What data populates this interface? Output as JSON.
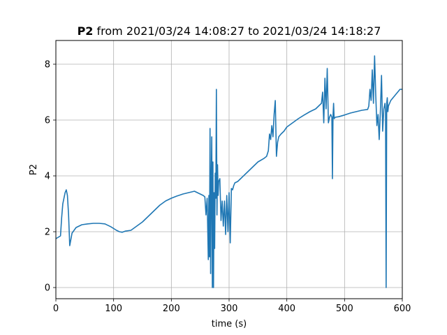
{
  "chart_data": {
    "type": "line",
    "title_bold": "P2",
    "title_rest": " from 2021/03/24 14:08:27 to 2021/03/24 14:18:27",
    "xlabel": "time (s)",
    "ylabel": "P2",
    "xlim": [
      0,
      600
    ],
    "ylim": [
      -0.4,
      8.85
    ],
    "xticks": [
      0,
      100,
      200,
      300,
      400,
      500,
      600
    ],
    "yticks": [
      0,
      2,
      4,
      6,
      8
    ],
    "grid": true,
    "line_color": "#1f77b4",
    "series": [
      {
        "x": [
          0,
          4,
          8,
          10,
          12,
          14,
          16,
          18,
          20,
          22,
          24,
          28,
          35,
          45,
          55,
          65,
          75,
          85,
          95,
          105,
          110,
          115,
          120,
          130,
          140,
          150,
          160,
          170,
          180,
          190,
          200,
          210,
          220,
          230,
          240,
          250,
          255,
          258,
          260,
          262,
          264,
          265,
          266,
          267,
          268,
          269,
          270,
          271,
          272,
          273,
          274,
          275,
          276,
          277,
          278,
          279,
          280,
          281,
          282,
          284,
          286,
          288,
          290,
          292,
          294,
          296,
          298,
          300,
          302,
          304,
          306,
          308,
          310,
          315,
          320,
          330,
          340,
          350,
          360,
          365,
          368,
          370,
          372,
          374,
          376,
          378,
          380,
          382,
          384,
          386,
          390,
          395,
          400,
          410,
          420,
          430,
          440,
          450,
          455,
          460,
          462,
          464,
          466,
          468,
          470,
          472,
          474,
          476,
          478,
          479,
          480,
          481,
          482,
          484,
          490,
          500,
          510,
          520,
          530,
          540,
          542,
          544,
          546,
          548,
          550,
          552,
          554,
          556,
          558,
          560,
          562,
          564,
          566,
          568,
          570,
          571,
          572,
          573,
          574,
          575,
          576,
          578,
          580,
          584,
          588,
          592,
          596,
          600
        ],
        "y": [
          1.75,
          1.8,
          1.85,
          2.5,
          3.0,
          3.2,
          3.4,
          3.5,
          3.3,
          2.6,
          1.5,
          1.95,
          2.15,
          2.25,
          2.28,
          2.3,
          2.3,
          2.28,
          2.18,
          2.05,
          2.0,
          1.98,
          2.02,
          2.05,
          2.2,
          2.35,
          2.55,
          2.75,
          2.95,
          3.1,
          3.2,
          3.28,
          3.35,
          3.4,
          3.45,
          3.35,
          3.3,
          3.25,
          2.6,
          3.2,
          1.0,
          3.3,
          1.1,
          5.7,
          0.5,
          3.8,
          5.4,
          0.0,
          4.5,
          0.0,
          3.4,
          1.4,
          4.1,
          3.2,
          7.1,
          2.6,
          4.4,
          3.3,
          3.8,
          3.9,
          2.4,
          3.1,
          2.2,
          3.1,
          1.9,
          3.3,
          2.0,
          3.4,
          1.6,
          3.55,
          3.5,
          3.65,
          3.75,
          3.8,
          3.9,
          4.1,
          4.3,
          4.5,
          4.62,
          4.7,
          4.9,
          5.5,
          5.3,
          5.8,
          5.4,
          6.2,
          6.7,
          4.7,
          5.2,
          5.4,
          5.5,
          5.6,
          5.75,
          5.9,
          6.05,
          6.18,
          6.3,
          6.4,
          6.5,
          6.6,
          7.0,
          5.9,
          7.5,
          6.4,
          7.85,
          5.9,
          6.1,
          6.2,
          6.1,
          3.9,
          6.15,
          6.6,
          6.05,
          6.1,
          6.12,
          6.18,
          6.25,
          6.3,
          6.35,
          6.38,
          6.5,
          7.1,
          6.7,
          7.8,
          6.6,
          8.3,
          6.9,
          5.8,
          6.2,
          5.3,
          6.3,
          7.6,
          5.6,
          6.4,
          6.6,
          6.3,
          0.0,
          6.6,
          6.8,
          6.3,
          6.5,
          6.6,
          6.7,
          6.8,
          6.9,
          7.0,
          7.1,
          7.1
        ]
      }
    ]
  }
}
